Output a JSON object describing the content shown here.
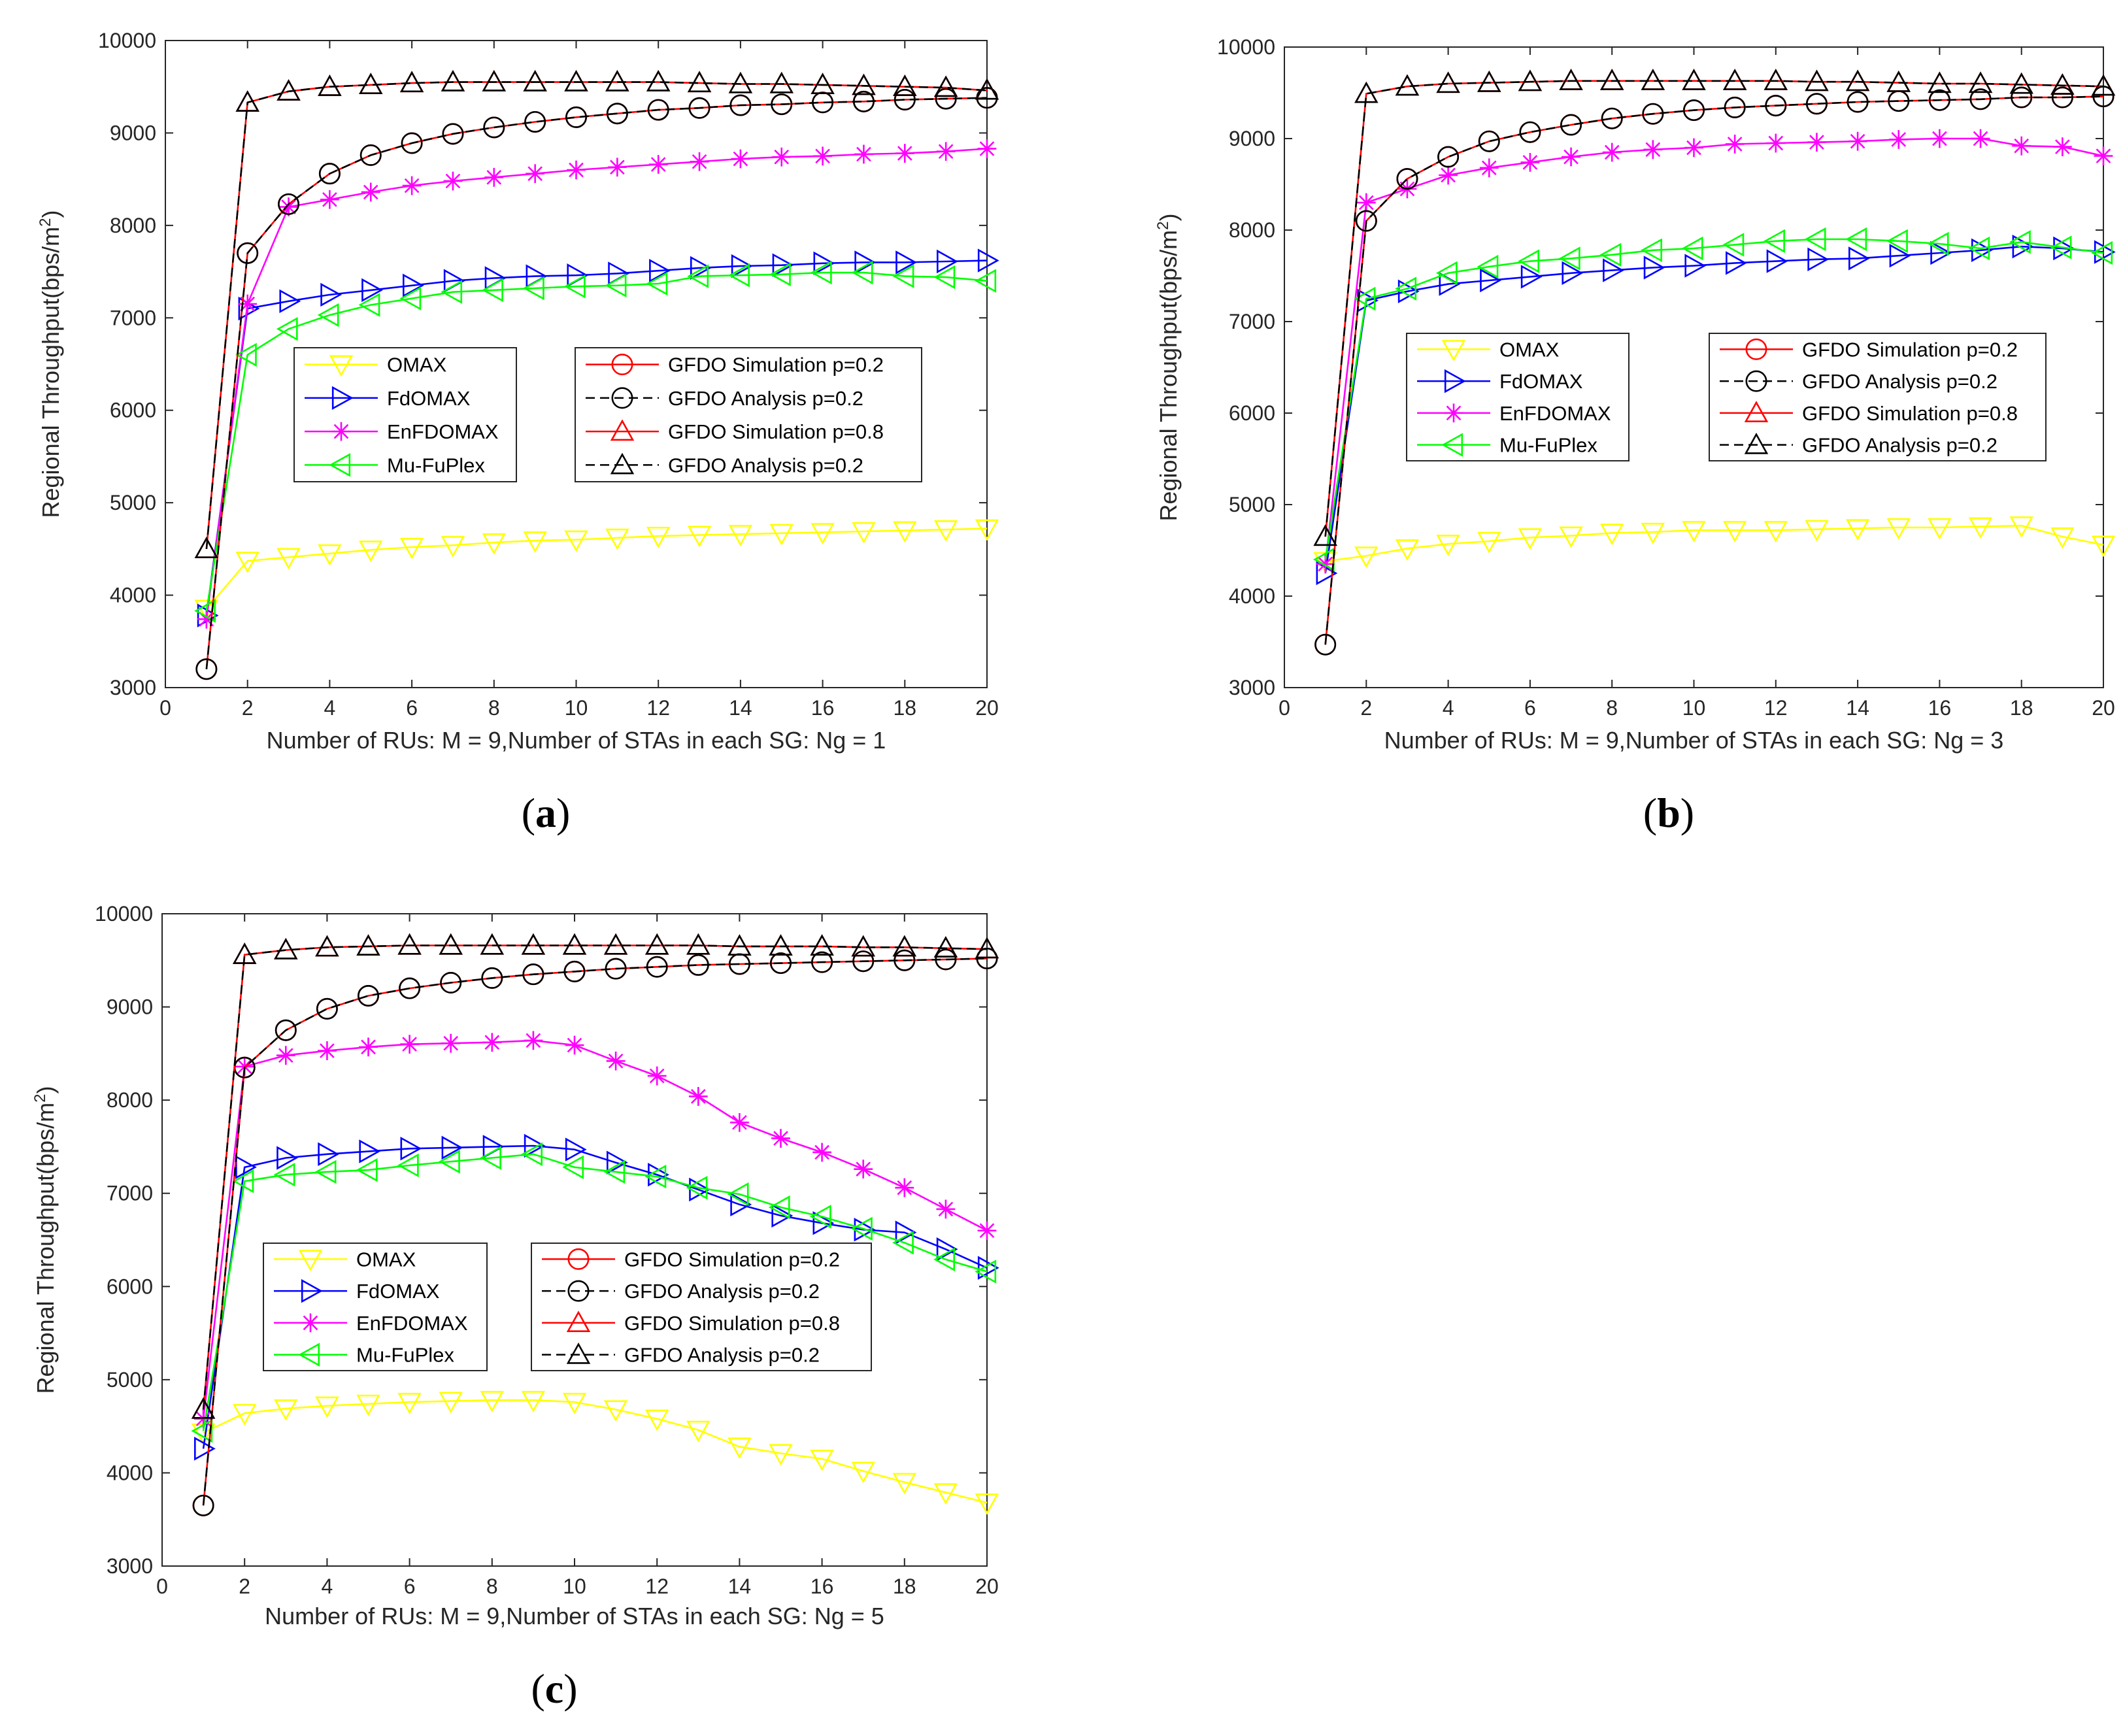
{
  "chart_data": [
    {
      "type": "line",
      "panel": "a",
      "panel_label": "a",
      "xlabel": "Number of RUs: M = 9,Number of STAs in each SG: Ng = 1",
      "ylabel": "Regional Throughput(bps/m",
      "ylabel_sup": "2",
      "ylabel_tail": ")",
      "xlim": [
        0,
        20
      ],
      "ylim": [
        3000,
        10000
      ],
      "xticks": [
        0,
        2,
        4,
        6,
        8,
        10,
        12,
        14,
        16,
        18,
        20
      ],
      "yticks": [
        3000,
        4000,
        5000,
        6000,
        7000,
        8000,
        9000,
        10000
      ],
      "x": [
        1,
        2,
        3,
        4,
        5,
        6,
        7,
        8,
        9,
        10,
        11,
        12,
        13,
        14,
        15,
        16,
        17,
        18,
        19,
        20
      ],
      "series": [
        {
          "name": "OMAX",
          "color": "#FFFF00",
          "marker": "triangle-down",
          "dash": "solid",
          "values": [
            3850,
            4370,
            4410,
            4450,
            4490,
            4520,
            4540,
            4570,
            4590,
            4600,
            4620,
            4640,
            4650,
            4660,
            4670,
            4680,
            4690,
            4700,
            4710,
            4720
          ]
        },
        {
          "name": "FdOMAX",
          "color": "#0000FF",
          "marker": "triangle-right",
          "dash": "solid",
          "values": [
            3780,
            7100,
            7180,
            7250,
            7300,
            7350,
            7400,
            7430,
            7450,
            7460,
            7480,
            7510,
            7540,
            7560,
            7570,
            7590,
            7600,
            7600,
            7610,
            7620
          ]
        },
        {
          "name": "EnFDOMAX",
          "color": "#FF00FF",
          "marker": "asterisk",
          "dash": "solid",
          "values": [
            3740,
            7150,
            8200,
            8280,
            8360,
            8430,
            8480,
            8520,
            8560,
            8600,
            8630,
            8660,
            8690,
            8720,
            8740,
            8750,
            8770,
            8780,
            8800,
            8830
          ]
        },
        {
          "name": "Mu-FuPlex",
          "color": "#00FF00",
          "marker": "triangle-left",
          "dash": "solid",
          "values": [
            3830,
            6600,
            6880,
            7030,
            7140,
            7210,
            7280,
            7300,
            7320,
            7340,
            7350,
            7370,
            7450,
            7460,
            7470,
            7490,
            7490,
            7450,
            7440,
            7400
          ]
        },
        {
          "name": "GFDO Simulation p=0.2",
          "color": "#FF0000",
          "marker": "circle",
          "dash": "solid",
          "values": [
            3200,
            7700,
            8230,
            8560,
            8760,
            8890,
            8990,
            9060,
            9120,
            9170,
            9210,
            9250,
            9270,
            9300,
            9310,
            9330,
            9340,
            9360,
            9370,
            9380
          ]
        },
        {
          "name": "GFDO Analysis p=0.2",
          "color": "#000000",
          "marker": "circle",
          "dash": "dashed",
          "values": [
            3200,
            7700,
            8230,
            8560,
            8760,
            8890,
            8990,
            9060,
            9120,
            9170,
            9210,
            9250,
            9270,
            9300,
            9310,
            9330,
            9340,
            9360,
            9370,
            9380
          ]
        },
        {
          "name": "GFDO Simulation p=0.8",
          "color": "#FF0000",
          "marker": "triangle-up",
          "dash": "solid",
          "values": [
            4500,
            9330,
            9450,
            9500,
            9520,
            9540,
            9550,
            9550,
            9550,
            9550,
            9550,
            9550,
            9540,
            9530,
            9530,
            9520,
            9510,
            9500,
            9490,
            9460
          ]
        },
        {
          "name": "GFDO Analysis p=0.2",
          "color": "#000000",
          "marker": "triangle-up",
          "dash": "dashed",
          "values": [
            4500,
            9330,
            9450,
            9500,
            9520,
            9540,
            9550,
            9550,
            9550,
            9550,
            9550,
            9550,
            9540,
            9530,
            9530,
            9520,
            9510,
            9500,
            9490,
            9460
          ]
        }
      ]
    },
    {
      "type": "line",
      "panel": "b",
      "panel_label": "b",
      "xlabel": "Number of RUs: M = 9,Number of STAs in each SG: Ng = 3",
      "ylabel": "Regional Throughput(bps/m",
      "ylabel_sup": "2",
      "ylabel_tail": ")",
      "xlim": [
        0,
        20
      ],
      "ylim": [
        3000,
        10000
      ],
      "xticks": [
        0,
        2,
        4,
        6,
        8,
        10,
        12,
        14,
        16,
        18,
        20
      ],
      "yticks": [
        3000,
        4000,
        5000,
        6000,
        7000,
        8000,
        9000,
        10000
      ],
      "x": [
        1,
        2,
        3,
        4,
        5,
        6,
        7,
        8,
        9,
        10,
        11,
        12,
        13,
        14,
        15,
        16,
        17,
        18,
        19,
        20
      ],
      "series": [
        {
          "name": "OMAX",
          "color": "#FFFF00",
          "marker": "triangle-down",
          "dash": "solid",
          "values": [
            4380,
            4440,
            4520,
            4570,
            4600,
            4640,
            4660,
            4690,
            4700,
            4720,
            4720,
            4720,
            4730,
            4740,
            4750,
            4750,
            4760,
            4770,
            4650,
            4560
          ]
        },
        {
          "name": "FdOMAX",
          "color": "#0000FF",
          "marker": "triangle-right",
          "dash": "solid",
          "values": [
            4250,
            7230,
            7330,
            7410,
            7450,
            7490,
            7530,
            7560,
            7590,
            7610,
            7640,
            7660,
            7680,
            7690,
            7720,
            7750,
            7780,
            7820,
            7800,
            7760
          ]
        },
        {
          "name": "EnFDOMAX",
          "color": "#FF00FF",
          "marker": "asterisk",
          "dash": "solid",
          "values": [
            4350,
            8300,
            8450,
            8600,
            8680,
            8740,
            8800,
            8850,
            8880,
            8900,
            8940,
            8950,
            8960,
            8970,
            8990,
            9000,
            9000,
            8920,
            8910,
            8810
          ]
        },
        {
          "name": "Mu-FuPlex",
          "color": "#00FF00",
          "marker": "triangle-left",
          "dash": "solid",
          "values": [
            4400,
            7250,
            7360,
            7530,
            7600,
            7660,
            7690,
            7730,
            7780,
            7800,
            7840,
            7880,
            7900,
            7900,
            7880,
            7850,
            7800,
            7870,
            7810,
            7750
          ]
        },
        {
          "name": "GFDO Simulation p=0.2",
          "color": "#FF0000",
          "marker": "circle",
          "dash": "solid",
          "values": [
            3470,
            8100,
            8560,
            8800,
            8970,
            9070,
            9150,
            9220,
            9270,
            9310,
            9340,
            9360,
            9380,
            9400,
            9410,
            9420,
            9430,
            9450,
            9450,
            9460
          ]
        },
        {
          "name": "GFDO Analysis p=0.2",
          "color": "#000000",
          "marker": "circle",
          "dash": "dashed",
          "values": [
            3470,
            8100,
            8560,
            8800,
            8970,
            9070,
            9150,
            9220,
            9270,
            9310,
            9340,
            9360,
            9380,
            9400,
            9410,
            9420,
            9430,
            9450,
            9450,
            9460
          ]
        },
        {
          "name": "GFDO Simulation p=0.8",
          "color": "#FF0000",
          "marker": "triangle-up",
          "dash": "solid",
          "values": [
            4650,
            9490,
            9570,
            9600,
            9610,
            9620,
            9630,
            9630,
            9630,
            9630,
            9630,
            9630,
            9620,
            9620,
            9610,
            9600,
            9600,
            9590,
            9580,
            9570
          ]
        },
        {
          "name": "GFDO Analysis p=0.2",
          "color": "#000000",
          "marker": "triangle-up",
          "dash": "dashed",
          "values": [
            4650,
            9490,
            9570,
            9600,
            9610,
            9620,
            9630,
            9630,
            9630,
            9630,
            9630,
            9630,
            9620,
            9620,
            9610,
            9600,
            9600,
            9590,
            9580,
            9570
          ]
        }
      ]
    },
    {
      "type": "line",
      "panel": "c",
      "panel_label": "c",
      "xlabel": "Number of RUs: M = 9,Number of STAs in each SG: Ng = 5",
      "ylabel": "Regional Throughput(bps/m",
      "ylabel_sup": "2",
      "ylabel_tail": ")",
      "xlim": [
        0,
        20
      ],
      "ylim": [
        3000,
        10000
      ],
      "xticks": [
        0,
        2,
        4,
        6,
        8,
        10,
        12,
        14,
        16,
        18,
        20
      ],
      "yticks": [
        3000,
        4000,
        5000,
        6000,
        7000,
        8000,
        9000,
        10000
      ],
      "x": [
        1,
        2,
        3,
        4,
        5,
        6,
        7,
        8,
        9,
        10,
        11,
        12,
        13,
        14,
        15,
        16,
        17,
        18,
        19,
        20
      ],
      "series": [
        {
          "name": "OMAX",
          "color": "#FFFF00",
          "marker": "triangle-down",
          "dash": "solid",
          "values": [
            4430,
            4640,
            4690,
            4720,
            4740,
            4760,
            4770,
            4780,
            4780,
            4760,
            4680,
            4580,
            4460,
            4280,
            4210,
            4150,
            4020,
            3900,
            3790,
            3680
          ]
        },
        {
          "name": "FdOMAX",
          "color": "#0000FF",
          "marker": "triangle-right",
          "dash": "solid",
          "values": [
            4260,
            7280,
            7380,
            7420,
            7450,
            7480,
            7490,
            7500,
            7510,
            7470,
            7330,
            7200,
            7040,
            6880,
            6760,
            6680,
            6610,
            6580,
            6400,
            6200
          ]
        },
        {
          "name": "EnFDOMAX",
          "color": "#FF00FF",
          "marker": "asterisk",
          "dash": "solid",
          "values": [
            4580,
            8360,
            8480,
            8530,
            8570,
            8600,
            8610,
            8620,
            8640,
            8590,
            8420,
            8260,
            8040,
            7760,
            7590,
            7440,
            7260,
            7060,
            6830,
            6600
          ]
        },
        {
          "name": "Mu-FuPlex",
          "color": "#00FF00",
          "marker": "triangle-left",
          "dash": "solid",
          "values": [
            4450,
            7130,
            7200,
            7230,
            7250,
            7300,
            7340,
            7380,
            7420,
            7280,
            7230,
            7180,
            7060,
            6990,
            6850,
            6750,
            6620,
            6470,
            6290,
            6160
          ]
        },
        {
          "name": "GFDO Simulation p=0.2",
          "color": "#FF0000",
          "marker": "circle",
          "dash": "solid",
          "values": [
            3650,
            8350,
            8750,
            8980,
            9120,
            9200,
            9260,
            9310,
            9350,
            9380,
            9410,
            9430,
            9450,
            9460,
            9470,
            9480,
            9490,
            9500,
            9510,
            9520
          ]
        },
        {
          "name": "GFDO Analysis p=0.2",
          "color": "#000000",
          "marker": "circle",
          "dash": "dashed",
          "values": [
            3650,
            8350,
            8750,
            8980,
            9120,
            9200,
            9260,
            9310,
            9350,
            9380,
            9410,
            9430,
            9450,
            9460,
            9470,
            9480,
            9490,
            9500,
            9510,
            9520
          ]
        },
        {
          "name": "GFDO Simulation p=0.8",
          "color": "#FF0000",
          "marker": "triangle-up",
          "dash": "solid",
          "values": [
            4680,
            9560,
            9610,
            9640,
            9650,
            9660,
            9660,
            9660,
            9660,
            9660,
            9660,
            9660,
            9660,
            9650,
            9650,
            9650,
            9640,
            9640,
            9630,
            9620
          ]
        },
        {
          "name": "GFDO Analysis p=0.2",
          "color": "#000000",
          "marker": "triangle-up",
          "dash": "dashed",
          "values": [
            4680,
            9560,
            9610,
            9640,
            9650,
            9660,
            9660,
            9660,
            9660,
            9660,
            9660,
            9660,
            9660,
            9650,
            9650,
            9650,
            9640,
            9640,
            9630,
            9620
          ]
        }
      ]
    }
  ]
}
